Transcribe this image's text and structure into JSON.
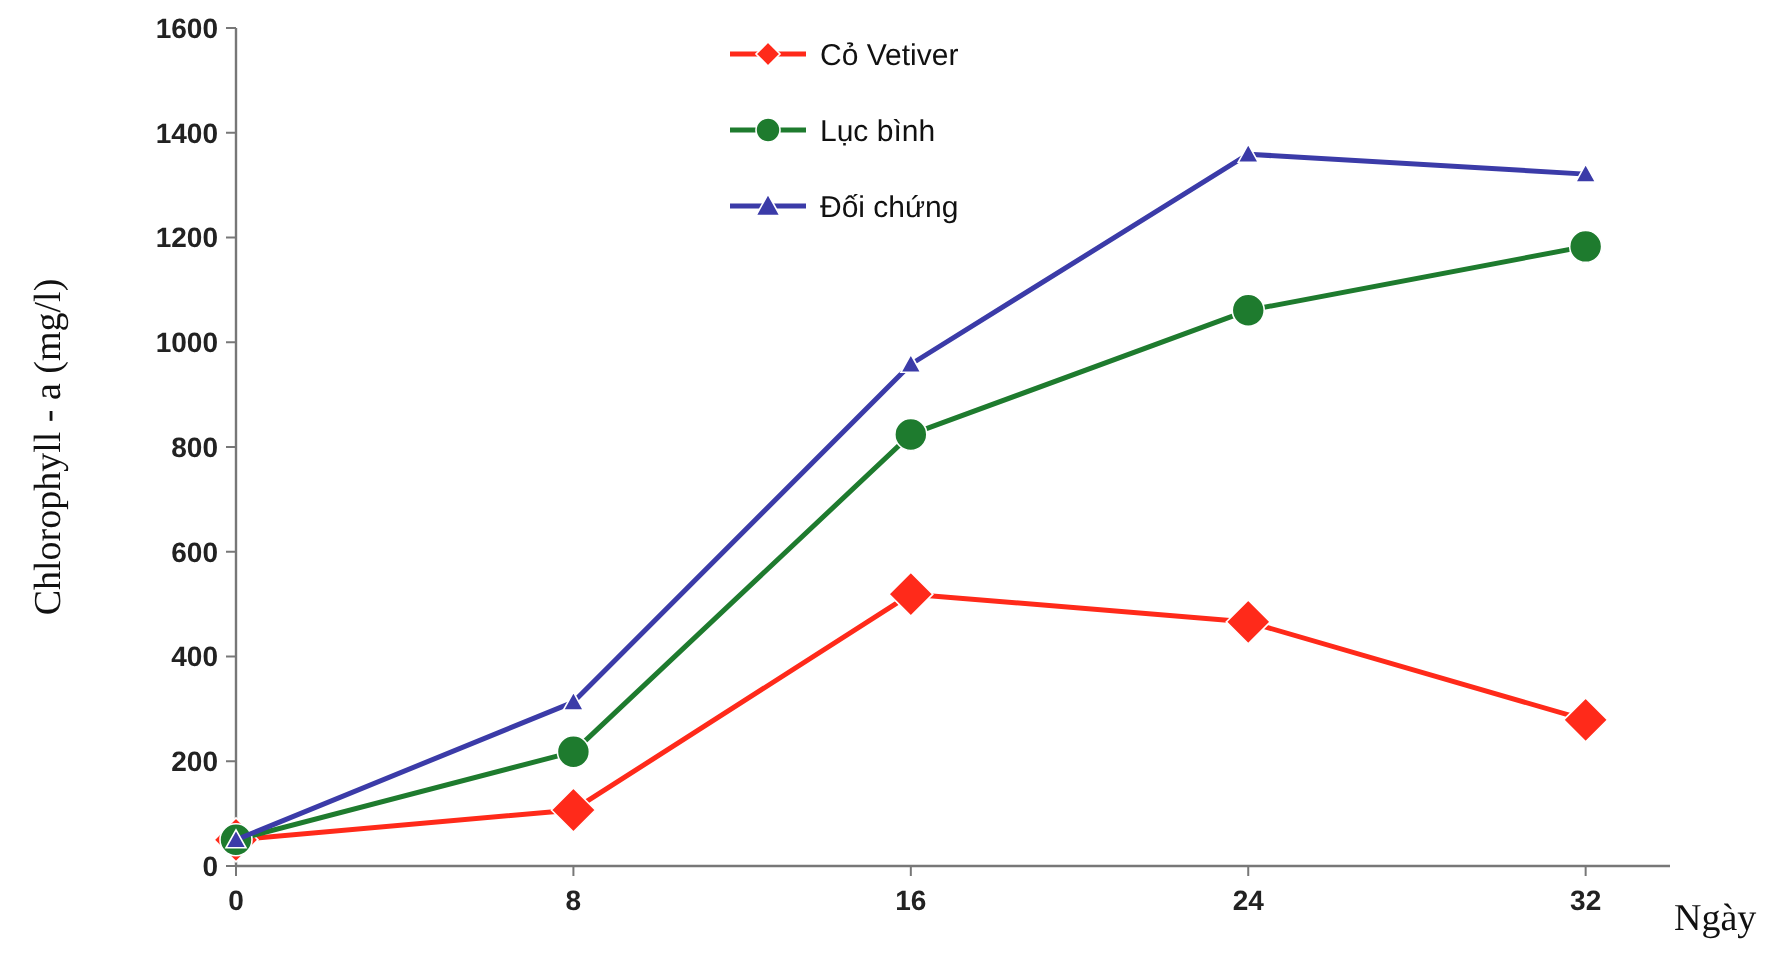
{
  "chart_data": {
    "type": "line",
    "ylabel": "Chlorophyll - a (mg/l)",
    "xlabel": "Ngày",
    "x": [
      0,
      8,
      16,
      24,
      32
    ],
    "series": [
      {
        "name": "Cỏ Vetiver",
        "color": "#ff2a1a",
        "marker": "diamond",
        "values": [
          50,
          107,
          519,
          466,
          279
        ]
      },
      {
        "name": "Lục bình",
        "color": "#1e7b2e",
        "marker": "circle",
        "values": [
          50,
          218,
          824,
          1061,
          1183
        ]
      },
      {
        "name": "Đối chứng",
        "color": "#3b3ba8",
        "marker": "triangle",
        "values": [
          50,
          313,
          958,
          1359,
          1321
        ]
      }
    ],
    "xlim": [
      0,
      34
    ],
    "xticks": [
      0,
      8,
      16,
      24,
      32
    ],
    "ylim": [
      0,
      1600
    ],
    "yticks": [
      0,
      200,
      400,
      600,
      800,
      1000,
      1200,
      1400,
      1600
    ],
    "grid": false,
    "legend": "top",
    "line_style": "solid"
  }
}
